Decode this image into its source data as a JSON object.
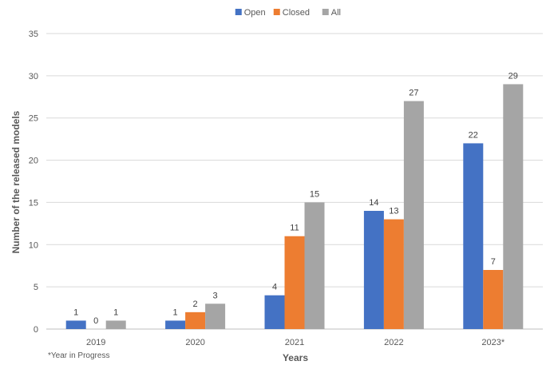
{
  "chart_data": {
    "type": "bar",
    "title": "",
    "xlabel": "Years",
    "ylabel": "Number of the released models",
    "categories": [
      "2019",
      "2020",
      "2021",
      "2022",
      "2023*"
    ],
    "series": [
      {
        "name": "Open",
        "color": "#4472c4",
        "values": [
          1,
          1,
          4,
          14,
          22
        ]
      },
      {
        "name": "Closed",
        "color": "#ed7d31",
        "values": [
          0,
          2,
          11,
          13,
          7
        ]
      },
      {
        "name": "All",
        "color": "#a5a5a5",
        "values": [
          1,
          3,
          15,
          27,
          29
        ]
      }
    ],
    "ylim": [
      0,
      35
    ],
    "yticks": [
      0,
      5,
      10,
      15,
      20,
      25,
      30,
      35
    ],
    "grid": true,
    "legend_position": "top-center",
    "footnote": "*Year in Progress"
  }
}
